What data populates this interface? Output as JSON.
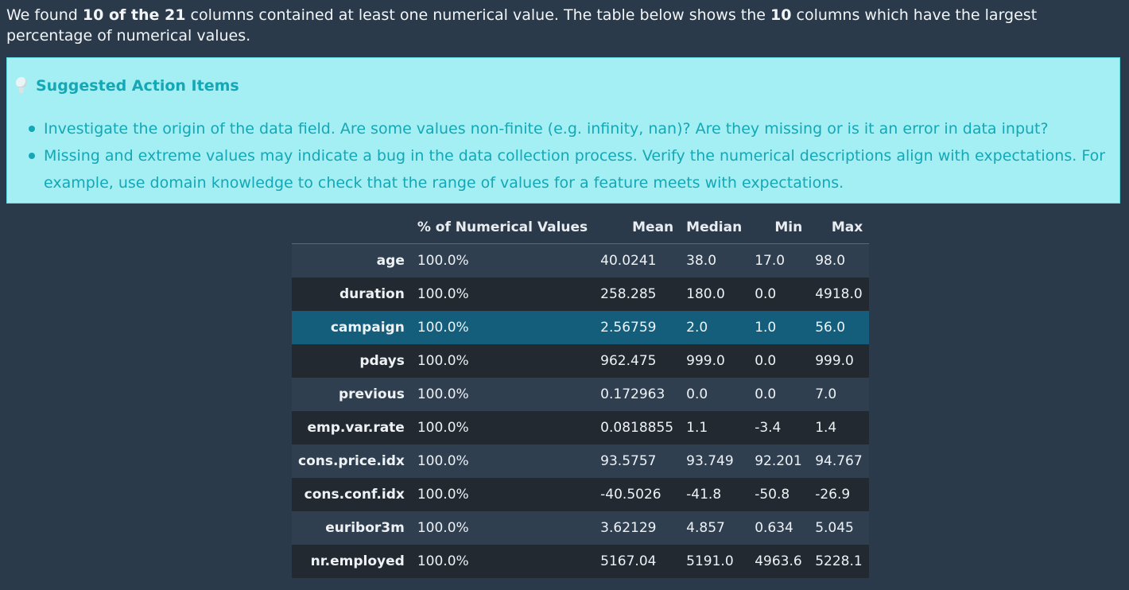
{
  "intro": {
    "part1": "We found ",
    "found_bold": "10 of the 21",
    "part2": " columns contained at least one numerical value. The table below shows the ",
    "count_bold": "10",
    "part3": " columns which have the largest percentage of numerical values."
  },
  "callout": {
    "title": "Suggested Action Items",
    "icon": "lightbulb-icon",
    "items": [
      "Investigate the origin of the data field. Are some values non-finite (e.g. infinity, nan)? Are they missing or is it an error in data input?",
      "Missing and extreme values may indicate a bug in the data collection process. Verify the numerical descriptions align with expectations. For example, use domain knowledge to check that the range of values for a feature meets with expectations."
    ]
  },
  "table": {
    "columns": [
      "",
      "% of Numerical Values",
      "Mean",
      "Median",
      "Min",
      "Max"
    ],
    "rows": [
      {
        "name": "age",
        "pct": "100.0%",
        "mean": "40.0241",
        "median": "38.0",
        "min": "17.0",
        "max": "98.0"
      },
      {
        "name": "duration",
        "pct": "100.0%",
        "mean": "258.285",
        "median": "180.0",
        "min": "0.0",
        "max": "4918.0"
      },
      {
        "name": "campaign",
        "pct": "100.0%",
        "mean": "2.56759",
        "median": "2.0",
        "min": "1.0",
        "max": "56.0"
      },
      {
        "name": "pdays",
        "pct": "100.0%",
        "mean": "962.475",
        "median": "999.0",
        "min": "0.0",
        "max": "999.0"
      },
      {
        "name": "previous",
        "pct": "100.0%",
        "mean": "0.172963",
        "median": "0.0",
        "min": "0.0",
        "max": "7.0"
      },
      {
        "name": "emp.var.rate",
        "pct": "100.0%",
        "mean": "0.0818855",
        "median": "1.1",
        "min": "-3.4",
        "max": "1.4"
      },
      {
        "name": "cons.price.idx",
        "pct": "100.0%",
        "mean": "93.5757",
        "median": "93.749",
        "min": "92.201",
        "max": "94.767"
      },
      {
        "name": "cons.conf.idx",
        "pct": "100.0%",
        "mean": "-40.5026",
        "median": "-41.8",
        "min": "-50.8",
        "max": "-26.9"
      },
      {
        "name": "euribor3m",
        "pct": "100.0%",
        "mean": "3.62129",
        "median": "4.857",
        "min": "0.634",
        "max": "5.045"
      },
      {
        "name": "nr.employed",
        "pct": "100.0%",
        "mean": "5167.04",
        "median": "5191.0",
        "min": "4963.6",
        "max": "5228.1"
      }
    ],
    "highlighted_row": "campaign"
  },
  "colors": {
    "background": "#2b3a4a",
    "callout_bg": "#a4eff3",
    "callout_text": "#14a7b5",
    "row_highlight": "#145e7c",
    "row_odd": "#2f3f50",
    "row_even": "#222931"
  }
}
